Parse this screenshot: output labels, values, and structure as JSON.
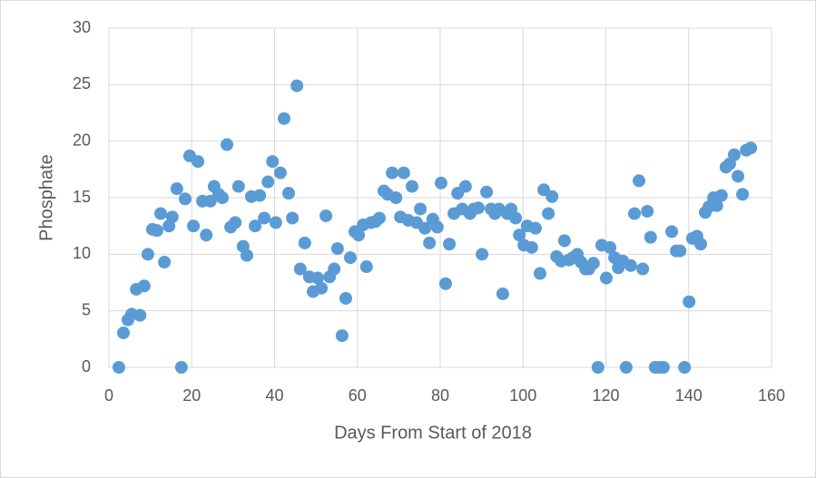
{
  "chart_data": {
    "type": "scatter",
    "xlabel": "Days From Start of 2018",
    "ylabel": "Phosphate",
    "color": "#5b9bd5",
    "grid": true,
    "xlim": [
      0,
      160
    ],
    "xticks": [
      0,
      20,
      40,
      60,
      80,
      100,
      120,
      140,
      160
    ],
    "ylim": [
      0,
      30
    ],
    "yticks": [
      0,
      5,
      10,
      15,
      20,
      25,
      30
    ],
    "x": [
      2.4,
      3.5,
      4.6,
      5.5,
      6.6,
      7.5,
      8.5,
      9.4,
      10.5,
      11.6,
      12.5,
      13.4,
      14.5,
      15.3,
      16.4,
      17.5,
      18.4,
      19.5,
      20.4,
      21.5,
      22.6,
      23.5,
      24.5,
      25.4,
      26.5,
      27.4,
      28.5,
      29.4,
      30.5,
      31.3,
      32.4,
      33.3,
      34.4,
      35.3,
      36.4,
      37.5,
      38.4,
      39.5,
      40.3,
      41.4,
      42.3,
      43.4,
      44.3,
      45.4,
      46.2,
      47.3,
      48.4,
      49.3,
      50.4,
      51.3,
      52.4,
      53.3,
      54.4,
      55.2,
      56.3,
      57.2,
      58.3,
      59.4,
      60.3,
      61.4,
      62.2,
      63.3,
      64.4,
      65.3,
      66.4,
      67.3,
      68.4,
      69.3,
      70.4,
      71.2,
      72.3,
      73.2,
      74.3,
      75.2,
      76.3,
      77.4,
      78.2,
      79.3,
      80.2,
      81.3,
      82.2,
      83.3,
      84.2,
      85.3,
      86.1,
      87.2,
      88.1,
      89.2,
      90.1,
      91.2,
      92.3,
      93.2,
      94.2,
      95.1,
      96.2,
      97.1,
      98.2,
      99.1,
      100.2,
      101.0,
      102.1,
      103.0,
      104.1,
      105.0,
      106.1,
      107.0,
      108.1,
      109.2,
      110.0,
      111.1,
      112.0,
      113.1,
      114.0,
      115.1,
      115.9,
      117.0,
      118.1,
      119.0,
      120.1,
      121.0,
      122.1,
      123.0,
      124.1,
      124.9,
      126.0,
      126.9,
      128.0,
      128.9,
      130.0,
      130.8,
      131.9,
      133.0,
      133.9,
      135.9,
      137.0,
      137.9,
      139.0,
      140.1,
      140.9,
      142.0,
      142.9,
      144.0,
      144.9,
      146.0,
      146.8,
      147.9,
      149.0,
      149.9,
      151.0,
      151.9,
      153.0,
      153.9,
      155.0
    ],
    "values": [
      0,
      3.05,
      4.2,
      4.7,
      6.9,
      4.6,
      7.2,
      10.0,
      12.2,
      12.1,
      13.6,
      9.3,
      12.5,
      13.3,
      15.8,
      0,
      14.9,
      18.7,
      12.5,
      18.2,
      14.7,
      11.7,
      14.7,
      16.0,
      15.3,
      15.0,
      19.7,
      12.4,
      12.8,
      16.0,
      10.7,
      9.9,
      15.1,
      12.5,
      15.2,
      13.2,
      16.4,
      18.2,
      12.8,
      17.2,
      22.0,
      15.4,
      13.2,
      24.9,
      8.7,
      11.0,
      8.0,
      6.7,
      7.9,
      7.0,
      13.4,
      8.0,
      8.7,
      10.5,
      2.8,
      6.1,
      9.7,
      12.0,
      11.7,
      12.6,
      8.9,
      12.8,
      12.9,
      13.2,
      15.6,
      15.3,
      17.2,
      15.0,
      13.3,
      17.2,
      13.0,
      16.0,
      12.8,
      14.0,
      12.3,
      11.0,
      13.1,
      12.4,
      16.3,
      7.4,
      10.9,
      13.6,
      15.4,
      14.0,
      16.0,
      13.6,
      14.0,
      14.1,
      10.0,
      15.5,
      14.0,
      13.6,
      14.0,
      6.5,
      13.6,
      14.0,
      13.2,
      11.7,
      10.8,
      12.5,
      10.6,
      12.3,
      8.3,
      15.7,
      13.6,
      15.1,
      9.8,
      9.4,
      11.2,
      9.5,
      9.7,
      10.0,
      9.3,
      8.7,
      8.7,
      9.2,
      0,
      10.8,
      7.9,
      10.6,
      9.7,
      8.8,
      9.4,
      0,
      9.0,
      13.6,
      16.5,
      8.7,
      13.8,
      11.5,
      0,
      0,
      0,
      12.0,
      10.3,
      10.3,
      0,
      5.8,
      11.4,
      11.6,
      10.9,
      13.7,
      14.2,
      15.0,
      14.3,
      15.2,
      17.7,
      18.0,
      18.8,
      16.9,
      15.3,
      19.2,
      19.4
    ]
  }
}
